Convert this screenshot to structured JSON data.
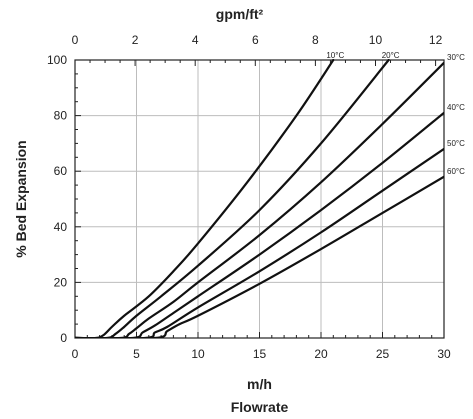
{
  "chart_data": {
    "type": "line",
    "title": "",
    "xlabel": "m/h",
    "xlabel2": "Flowrate",
    "ylabel": "% Bed Expansion",
    "top_xlabel": "gpm/ft²",
    "xlim": [
      0,
      30
    ],
    "ylim": [
      0,
      100
    ],
    "top_xlim": [
      0,
      12.28
    ],
    "x_ticks": [
      0,
      5,
      10,
      15,
      20,
      25,
      30
    ],
    "x_tick_labels": [
      "0",
      "5",
      "10",
      "15",
      "20",
      "25",
      "30"
    ],
    "y_ticks": [
      0,
      20,
      40,
      60,
      80,
      100
    ],
    "y_tick_labels": [
      "0",
      "20",
      "40",
      "60",
      "80",
      "100"
    ],
    "top_x_ticks": [
      0,
      2,
      4,
      6,
      8,
      10,
      12
    ],
    "top_x_tick_labels": [
      "0",
      "2",
      "4",
      "6",
      "8",
      "10",
      "12"
    ],
    "grid": true,
    "series": [
      {
        "name": "10°C",
        "x": [
          0,
          1.7,
          2.3,
          3,
          4,
          6,
          8,
          10,
          14,
          18,
          21
        ],
        "y": [
          0,
          0,
          1,
          4,
          8,
          15,
          24,
          34,
          56,
          80,
          100
        ]
      },
      {
        "name": "20°C",
        "x": [
          0,
          2.6,
          3.3,
          4,
          5,
          7,
          10,
          15,
          20,
          25.5
        ],
        "y": [
          0,
          0,
          1.5,
          4,
          8,
          15,
          26,
          46,
          70,
          100
        ]
      },
      {
        "name": "30°C",
        "x": [
          0,
          3.7,
          4.4,
          5,
          6,
          8,
          10,
          15,
          20,
          25,
          30
        ],
        "y": [
          0,
          0,
          1.5,
          3.5,
          7,
          13,
          20,
          37,
          56,
          77,
          99
        ]
      },
      {
        "name": "40°C",
        "x": [
          0,
          4.7,
          5.5,
          6.5,
          8,
          10,
          15,
          20,
          25,
          30
        ],
        "y": [
          0,
          0,
          2,
          4.5,
          9,
          15,
          30,
          46,
          63,
          81
        ]
      },
      {
        "name": "50°C",
        "x": [
          0,
          5.7,
          6.5,
          7.5,
          10,
          15,
          20,
          25,
          30
        ],
        "y": [
          0,
          0,
          2,
          4,
          11,
          24,
          38,
          53,
          68
        ]
      },
      {
        "name": "60°C",
        "x": [
          0,
          6.5,
          7.5,
          8.5,
          10,
          15,
          20,
          25,
          30
        ],
        "y": [
          0,
          0,
          2.5,
          5,
          8,
          19.5,
          32,
          45,
          58
        ]
      }
    ]
  }
}
